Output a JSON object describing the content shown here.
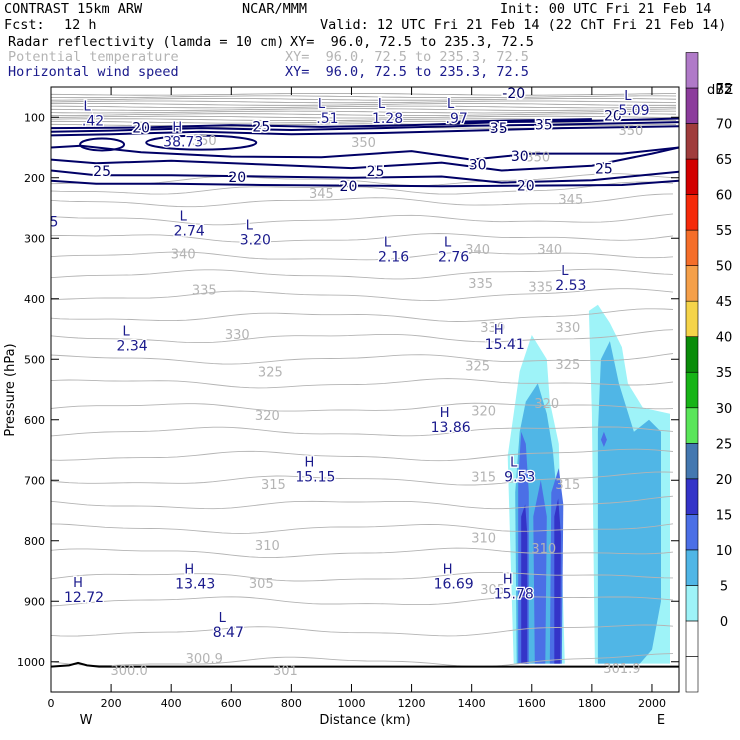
{
  "header": {
    "model": "CONTRAST 15km ARW",
    "org": "NCAR/MMM",
    "init": "Init: 00 UTC Fri 21 Feb 14",
    "fcst_label": "Fcst:",
    "fcst_value": "12 h",
    "valid": "Valid: 12 UTC Fri 21 Feb 14 (22 ChT Fri 21 Feb 14)",
    "fields": [
      {
        "name": "Radar reflectivity (lamda = 10 cm)",
        "xy": "XY=  96.0, 72.5 to 235.3, 72.5",
        "color": "#000000"
      },
      {
        "name": "Potential temperature",
        "xy": "XY=  96.0, 72.5 to 235.3, 72.5",
        "color": "#b4b4b4"
      },
      {
        "name": "Horizontal wind speed",
        "xy": "XY=  96.0, 72.5 to 235.3, 72.5",
        "color": "#1a1a8c"
      }
    ]
  },
  "chart_data": {
    "type": "cross-section contour",
    "xlabel": "Distance (km)",
    "ylabel": "Pressure (hPa)",
    "xlim": [
      0,
      2090
    ],
    "ylim": [
      1050,
      50
    ],
    "x_ticks": [
      0,
      200,
      400,
      600,
      800,
      1000,
      1200,
      1400,
      1600,
      1800,
      2000
    ],
    "y_ticks": [
      100,
      200,
      300,
      400,
      500,
      600,
      700,
      800,
      900,
      1000
    ],
    "x_end_labels": {
      "left": "W",
      "right": "E"
    },
    "colorbar": {
      "title": "dBZ",
      "levels": [
        -5,
        0,
        5,
        10,
        15,
        20,
        25,
        30,
        35,
        40,
        45,
        50,
        55,
        60,
        65,
        70,
        75
      ],
      "labels": [
        "0",
        "5",
        "10",
        "15",
        "20",
        "25",
        "30",
        "35",
        "40",
        "45",
        "50",
        "55",
        "60",
        "65",
        "70",
        "75"
      ],
      "colors": [
        "#ffffff",
        "#ffffff",
        "#9ef3f8",
        "#50b6e6",
        "#4b6fe6",
        "#3434c8",
        "#4478b0",
        "#5ae65a",
        "#17b417",
        "#0a8c0a",
        "#f5d44a",
        "#f5a04a",
        "#f56e2a",
        "#f52a0a",
        "#d20000",
        "#a03c3c",
        "#8c3c9c",
        "#b07ac8"
      ]
    },
    "theta_contours": {
      "color": "#b4b4b4",
      "labels": [
        {
          "text": "345",
          "x": 900,
          "p": 225
        },
        {
          "text": "345",
          "x": 1730,
          "p": 235
        },
        {
          "text": "340",
          "x": 440,
          "p": 325
        },
        {
          "text": "340",
          "x": 1420,
          "p": 318
        },
        {
          "text": "340",
          "x": 1660,
          "p": 318
        },
        {
          "text": "335",
          "x": 510,
          "p": 385
        },
        {
          "text": "335",
          "x": 1430,
          "p": 374
        },
        {
          "text": "335",
          "x": 1630,
          "p": 380
        },
        {
          "text": "330",
          "x": 620,
          "p": 458
        },
        {
          "text": "330",
          "x": 1470,
          "p": 447
        },
        {
          "text": "330",
          "x": 1720,
          "p": 447
        },
        {
          "text": "325",
          "x": 730,
          "p": 520
        },
        {
          "text": "325",
          "x": 1420,
          "p": 510
        },
        {
          "text": "325",
          "x": 1720,
          "p": 508
        },
        {
          "text": "320",
          "x": 720,
          "p": 592
        },
        {
          "text": "320",
          "x": 1440,
          "p": 585
        },
        {
          "text": "320",
          "x": 1650,
          "p": 572
        },
        {
          "text": "315",
          "x": 740,
          "p": 706
        },
        {
          "text": "315",
          "x": 1440,
          "p": 694
        },
        {
          "text": "315",
          "x": 1720,
          "p": 706
        },
        {
          "text": "310",
          "x": 720,
          "p": 807
        },
        {
          "text": "310",
          "x": 1440,
          "p": 795
        },
        {
          "text": "310",
          "x": 1640,
          "p": 812
        },
        {
          "text": "305",
          "x": 700,
          "p": 870
        },
        {
          "text": "305",
          "x": 1470,
          "p": 880
        },
        {
          "text": "300.0",
          "x": 260,
          "p": 1014
        },
        {
          "text": "300.9",
          "x": 510,
          "p": 994
        },
        {
          "text": "301",
          "x": 780,
          "p": 1014
        },
        {
          "text": "301.9",
          "x": 1900,
          "p": 1010
        },
        {
          "text": "350",
          "x": 510,
          "p": 138
        },
        {
          "text": "350",
          "x": 1040,
          "p": 141
        },
        {
          "text": "350",
          "x": 1620,
          "p": 165
        },
        {
          "text": "350",
          "x": 1930,
          "p": 121
        }
      ]
    },
    "wind_contours": {
      "color": "#000066",
      "labels": [
        {
          "text": "20",
          "x": 300,
          "p": 117
        },
        {
          "text": "25",
          "x": 700,
          "p": 115
        },
        {
          "text": "25",
          "x": 170,
          "p": 189
        },
        {
          "text": "20",
          "x": 620,
          "p": 199
        },
        {
          "text": "25",
          "x": 1080,
          "p": 189
        },
        {
          "text": "20",
          "x": 990,
          "p": 214
        },
        {
          "text": "35",
          "x": 1490,
          "p": 118
        },
        {
          "text": "35",
          "x": 1640,
          "p": 112
        },
        {
          "text": "30",
          "x": 1420,
          "p": 178
        },
        {
          "text": "30",
          "x": 1560,
          "p": 164
        },
        {
          "text": "25",
          "x": 1840,
          "p": 185
        },
        {
          "text": "20",
          "x": 1580,
          "p": 213
        },
        {
          "text": "-20",
          "x": 1540,
          "p": 60
        },
        {
          "text": "20",
          "x": 1870,
          "p": 97
        }
      ]
    },
    "extrema": [
      {
        "kind": "L",
        "value": ".42",
        "x": 140,
        "p": 100
      },
      {
        "kind": "H",
        "value": "38.73",
        "x": 440,
        "p": 135
      },
      {
        "kind": "L",
        "value": ".51",
        "x": 920,
        "p": 96
      },
      {
        "kind": "L",
        "value": "1.28",
        "x": 1120,
        "p": 96
      },
      {
        "kind": "L",
        "value": ".97",
        "x": 1350,
        "p": 96
      },
      {
        "kind": "L",
        "value": "5.09",
        "x": 1940,
        "p": 83
      },
      {
        "kind": "L",
        "value": "2.74",
        "x": 460,
        "p": 282
      },
      {
        "kind": "L",
        "value": "3.20",
        "x": 680,
        "p": 297
      },
      {
        "kind": "L",
        "value": "2.16",
        "x": 1140,
        "p": 325
      },
      {
        "kind": "L",
        "value": "2.76",
        "x": 1340,
        "p": 325
      },
      {
        "kind": "L",
        "value": "2.53",
        "x": 1730,
        "p": 372
      },
      {
        "kind": "L",
        "value": "2.34",
        "x": 270,
        "p": 472
      },
      {
        "kind": "H",
        "value": "15.41",
        "x": 1510,
        "p": 470
      },
      {
        "kind": "H",
        "value": "13.86",
        "x": 1330,
        "p": 607
      },
      {
        "kind": "H",
        "value": "15.15",
        "x": 880,
        "p": 689
      },
      {
        "kind": "L",
        "value": "9.53",
        "x": 1560,
        "p": 689
      },
      {
        "kind": "H",
        "value": "13.43",
        "x": 480,
        "p": 866
      },
      {
        "kind": "H",
        "value": "16.69",
        "x": 1340,
        "p": 866
      },
      {
        "kind": "H",
        "value": "15.78",
        "x": 1540,
        "p": 882
      },
      {
        "kind": "H",
        "value": "12.72",
        "x": 110,
        "p": 888
      },
      {
        "kind": "L",
        "value": "8.47",
        "x": 590,
        "p": 946
      }
    ],
    "edge_labels": [
      {
        "text": "5",
        "x": 10,
        "p": 272
      }
    ],
    "terrain_line": {
      "color": "#000000"
    }
  }
}
